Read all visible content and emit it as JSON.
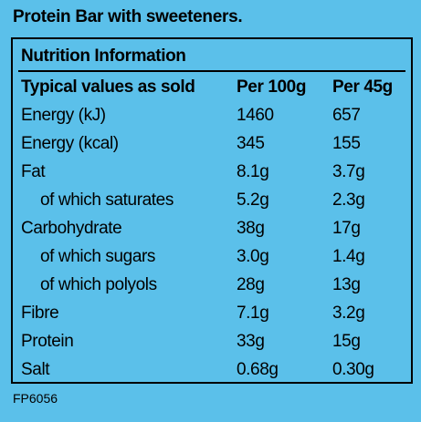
{
  "title": "Protein Bar with sweeteners.",
  "panel_heading": "Nutrition Information",
  "columns": {
    "label": "Typical values as sold",
    "per_100g": "Per 100g",
    "per_45g": "Per 45g"
  },
  "rows": [
    {
      "label": "Energy (kJ)",
      "per_100g": "1460",
      "per_45g": "657",
      "sub": false
    },
    {
      "label": "Energy (kcal)",
      "per_100g": "345",
      "per_45g": "155",
      "sub": false
    },
    {
      "label": "Fat",
      "per_100g": "8.1g",
      "per_45g": "3.7g",
      "sub": false
    },
    {
      "label": "of which saturates",
      "per_100g": "5.2g",
      "per_45g": "2.3g",
      "sub": true
    },
    {
      "label": "Carbohydrate",
      "per_100g": "38g",
      "per_45g": "17g",
      "sub": false
    },
    {
      "label": "of which sugars",
      "per_100g": "3.0g",
      "per_45g": "1.4g",
      "sub": true
    },
    {
      "label": "of which polyols",
      "per_100g": "28g",
      "per_45g": "13g",
      "sub": true
    },
    {
      "label": "Fibre",
      "per_100g": "7.1g",
      "per_45g": "3.2g",
      "sub": false
    },
    {
      "label": "Protein",
      "per_100g": "33g",
      "per_45g": "15g",
      "sub": false
    },
    {
      "label": "Salt",
      "per_100g": "0.68g",
      "per_45g": "0.30g",
      "sub": false
    }
  ],
  "footer_code": "FP6056",
  "colors": {
    "background": "#5bc0ea",
    "text": "#000000"
  }
}
